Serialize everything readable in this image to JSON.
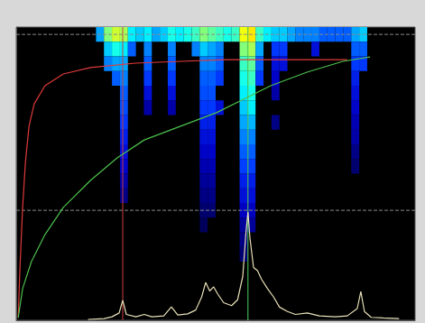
{
  "chart_data": {
    "type": "heatmap",
    "xlim": [
      0,
      100
    ],
    "ylim": [
      0,
      100
    ],
    "grid": false,
    "tick_labels": false,
    "heatmap": {
      "bin_width": 2,
      "bin_height": 5,
      "value_range": [
        0,
        1
      ],
      "cells": [
        [
          21,
          97.5,
          0.4
        ],
        [
          23,
          97.5,
          0.7
        ],
        [
          25,
          97.5,
          0.8
        ],
        [
          27,
          97.5,
          0.75
        ],
        [
          29,
          97.5,
          0.5
        ],
        [
          31,
          97.5,
          0.45
        ],
        [
          33,
          97.5,
          0.5
        ],
        [
          35,
          97.5,
          0.4
        ],
        [
          37,
          97.5,
          0.45
        ],
        [
          39,
          97.5,
          0.55
        ],
        [
          41,
          97.5,
          0.5
        ],
        [
          43,
          97.5,
          0.55
        ],
        [
          45,
          97.5,
          0.6
        ],
        [
          47,
          97.5,
          0.7
        ],
        [
          49,
          97.5,
          0.65
        ],
        [
          51,
          97.5,
          0.6
        ],
        [
          53,
          97.5,
          0.55
        ],
        [
          55,
          97.5,
          0.6
        ],
        [
          57,
          97.5,
          0.85
        ],
        [
          59,
          97.5,
          0.9
        ],
        [
          61,
          97.5,
          0.6
        ],
        [
          63,
          97.5,
          0.5
        ],
        [
          65,
          97.5,
          0.45
        ],
        [
          67,
          97.5,
          0.45
        ],
        [
          69,
          97.5,
          0.4
        ],
        [
          71,
          97.5,
          0.35
        ],
        [
          73,
          97.5,
          0.35
        ],
        [
          75,
          97.5,
          0.35
        ],
        [
          77,
          97.5,
          0.3
        ],
        [
          79,
          97.5,
          0.3
        ],
        [
          81,
          97.5,
          0.3
        ],
        [
          83,
          97.5,
          0.3
        ],
        [
          85,
          97.5,
          0.4
        ],
        [
          87,
          97.5,
          0.45
        ],
        [
          23,
          92.5,
          0.45
        ],
        [
          25,
          92.5,
          0.55
        ],
        [
          27,
          92.5,
          0.5
        ],
        [
          29,
          92.5,
          0.3
        ],
        [
          33,
          92.5,
          0.35
        ],
        [
          39,
          92.5,
          0.35
        ],
        [
          45,
          92.5,
          0.35
        ],
        [
          47,
          92.5,
          0.45
        ],
        [
          49,
          92.5,
          0.4
        ],
        [
          51,
          92.5,
          0.35
        ],
        [
          57,
          92.5,
          0.7
        ],
        [
          59,
          92.5,
          0.75
        ],
        [
          61,
          92.5,
          0.4
        ],
        [
          65,
          92.5,
          0.25
        ],
        [
          67,
          92.5,
          0.25
        ],
        [
          75,
          92.5,
          0.2
        ],
        [
          85,
          92.5,
          0.3
        ],
        [
          87,
          92.5,
          0.3
        ],
        [
          23,
          87.5,
          0.35
        ],
        [
          25,
          87.5,
          0.4
        ],
        [
          27,
          87.5,
          0.4
        ],
        [
          33,
          87.5,
          0.3
        ],
        [
          39,
          87.5,
          0.3
        ],
        [
          47,
          87.5,
          0.35
        ],
        [
          49,
          87.5,
          0.35
        ],
        [
          51,
          87.5,
          0.3
        ],
        [
          57,
          87.5,
          0.6
        ],
        [
          59,
          87.5,
          0.65
        ],
        [
          61,
          87.5,
          0.3
        ],
        [
          65,
          87.5,
          0.2
        ],
        [
          67,
          87.5,
          0.2
        ],
        [
          85,
          87.5,
          0.25
        ],
        [
          87,
          87.5,
          0.25
        ],
        [
          25,
          82.5,
          0.3
        ],
        [
          27,
          82.5,
          0.35
        ],
        [
          33,
          82.5,
          0.25
        ],
        [
          39,
          82.5,
          0.25
        ],
        [
          47,
          82.5,
          0.3
        ],
        [
          49,
          82.5,
          0.3
        ],
        [
          51,
          82.5,
          0.25
        ],
        [
          57,
          82.5,
          0.55
        ],
        [
          59,
          82.5,
          0.6
        ],
        [
          61,
          82.5,
          0.25
        ],
        [
          65,
          82.5,
          0.18
        ],
        [
          85,
          82.5,
          0.22
        ],
        [
          27,
          77.5,
          0.3
        ],
        [
          33,
          77.5,
          0.2
        ],
        [
          39,
          77.5,
          0.2
        ],
        [
          47,
          77.5,
          0.28
        ],
        [
          49,
          77.5,
          0.28
        ],
        [
          57,
          77.5,
          0.5
        ],
        [
          59,
          77.5,
          0.55
        ],
        [
          65,
          77.5,
          0.15
        ],
        [
          85,
          77.5,
          0.2
        ],
        [
          27,
          72.5,
          0.28
        ],
        [
          33,
          72.5,
          0.15
        ],
        [
          39,
          72.5,
          0.15
        ],
        [
          47,
          72.5,
          0.25
        ],
        [
          49,
          72.5,
          0.25
        ],
        [
          51,
          72.5,
          0.2
        ],
        [
          57,
          72.5,
          0.45
        ],
        [
          59,
          72.5,
          0.5
        ],
        [
          85,
          72.5,
          0.18
        ],
        [
          27,
          67.5,
          0.25
        ],
        [
          47,
          67.5,
          0.22
        ],
        [
          49,
          67.5,
          0.22
        ],
        [
          57,
          67.5,
          0.4
        ],
        [
          59,
          67.5,
          0.42
        ],
        [
          65,
          67.5,
          0.12
        ],
        [
          85,
          67.5,
          0.16
        ],
        [
          27,
          62.5,
          0.22
        ],
        [
          47,
          62.5,
          0.2
        ],
        [
          49,
          62.5,
          0.2
        ],
        [
          57,
          62.5,
          0.35
        ],
        [
          59,
          62.5,
          0.35
        ],
        [
          85,
          62.5,
          0.15
        ],
        [
          27,
          57.5,
          0.2
        ],
        [
          47,
          57.5,
          0.18
        ],
        [
          49,
          57.5,
          0.18
        ],
        [
          57,
          57.5,
          0.3
        ],
        [
          59,
          57.5,
          0.3
        ],
        [
          85,
          57.5,
          0.12
        ],
        [
          27,
          52.5,
          0.18
        ],
        [
          47,
          52.5,
          0.16
        ],
        [
          49,
          52.5,
          0.16
        ],
        [
          57,
          52.5,
          0.26
        ],
        [
          59,
          52.5,
          0.26
        ],
        [
          85,
          52.5,
          0.1
        ],
        [
          27,
          47.5,
          0.15
        ],
        [
          47,
          47.5,
          0.14
        ],
        [
          49,
          47.5,
          0.14
        ],
        [
          57,
          47.5,
          0.22
        ],
        [
          59,
          47.5,
          0.22
        ],
        [
          27,
          42.5,
          0.12
        ],
        [
          47,
          42.5,
          0.12
        ],
        [
          49,
          42.5,
          0.12
        ],
        [
          57,
          42.5,
          0.2
        ],
        [
          59,
          42.5,
          0.2
        ],
        [
          47,
          37.5,
          0.1
        ],
        [
          49,
          37.5,
          0.1
        ],
        [
          57,
          37.5,
          0.17
        ],
        [
          59,
          37.5,
          0.17
        ],
        [
          47,
          32.5,
          0.08
        ],
        [
          57,
          32.5,
          0.14
        ],
        [
          59,
          32.5,
          0.14
        ],
        [
          57,
          27.5,
          0.12
        ],
        [
          57,
          22.5,
          0.1
        ]
      ]
    },
    "series": [
      {
        "type": "line",
        "color": "#e03a3a",
        "x": [
          0.5,
          0.9,
          1.6,
          2.3,
          3.2,
          4.5,
          7.2,
          11.8,
          18.6,
          29.9,
          41.2,
          52.5,
          63.8,
          75.1,
          83.0
        ],
        "values": [
          0.9,
          16.9,
          38.5,
          53.8,
          66.2,
          73.8,
          80.0,
          84.0,
          86.2,
          87.7,
          88.3,
          88.9,
          88.9,
          88.9,
          88.9
        ]
      },
      {
        "type": "line",
        "color": "#4cc04c",
        "x": [
          0.5,
          1.6,
          3.8,
          7.2,
          11.8,
          18.6,
          25.3,
          32.1,
          41.2,
          50.2,
          57.0,
          63.8,
          72.9,
          81.9,
          88.7
        ],
        "values": [
          0.9,
          10.8,
          20.0,
          29.2,
          38.5,
          47.7,
          55.4,
          61.5,
          66.2,
          70.8,
          75.4,
          80.0,
          84.6,
          88.3,
          89.8
        ]
      },
      {
        "type": "line",
        "color": "#e8e0b8",
        "x": [
          18,
          22,
          24,
          25.8,
          26.7,
          27.6,
          30,
          32.1,
          34,
          37,
          38.9,
          40.5,
          43,
          45,
          46.5,
          47.5,
          48.5,
          49.5,
          50.5,
          52,
          54,
          55.5,
          56.8,
          57.6,
          58.1,
          58.6,
          59.5,
          60.5,
          61.5,
          63,
          64.5,
          66,
          68,
          70,
          73,
          76,
          80,
          83,
          85.5,
          86.4,
          87.3,
          89,
          92,
          96
        ],
        "values": [
          0.3,
          0.6,
          1.2,
          2.5,
          6.8,
          2.0,
          1.2,
          2.0,
          1.2,
          1.5,
          4.6,
          1.8,
          2.2,
          3.5,
          8.0,
          12.9,
          10.0,
          11.4,
          9.0,
          6.0,
          5.0,
          7.0,
          15.0,
          30.0,
          36.9,
          28.0,
          18.0,
          16.9,
          14.0,
          10.8,
          8.0,
          4.5,
          3.0,
          2.0,
          2.5,
          1.5,
          1.2,
          1.5,
          4.0,
          9.8,
          3.0,
          1.0,
          0.8,
          0.6
        ]
      }
    ],
    "vertical_lines": [
      {
        "x": 26.7,
        "color": "#c84040"
      },
      {
        "x": 58.1,
        "color": "#50d060"
      }
    ],
    "horizontal_lines": [
      {
        "y": 97.5,
        "color": "#8a8a8a",
        "line_style": "dashed"
      },
      {
        "y": 37.5,
        "color": "#8a8a8a",
        "line_style": "dashed"
      }
    ]
  }
}
